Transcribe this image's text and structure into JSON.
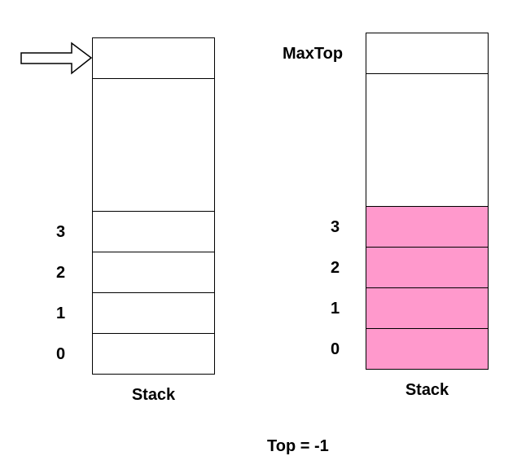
{
  "colors": {
    "filled": "#ff99cc",
    "empty": "#ffffff",
    "stroke": "#000000"
  },
  "left_stack": {
    "caption": "Stack",
    "indices": [
      "3",
      "2",
      "1",
      "0"
    ],
    "pointer_icon": "arrow-right-icon"
  },
  "right_stack": {
    "caption": "Stack",
    "max_top_label": "MaxTop",
    "indices": [
      "3",
      "2",
      "1",
      "0"
    ]
  },
  "footer": {
    "top_text": "Top = -1"
  }
}
